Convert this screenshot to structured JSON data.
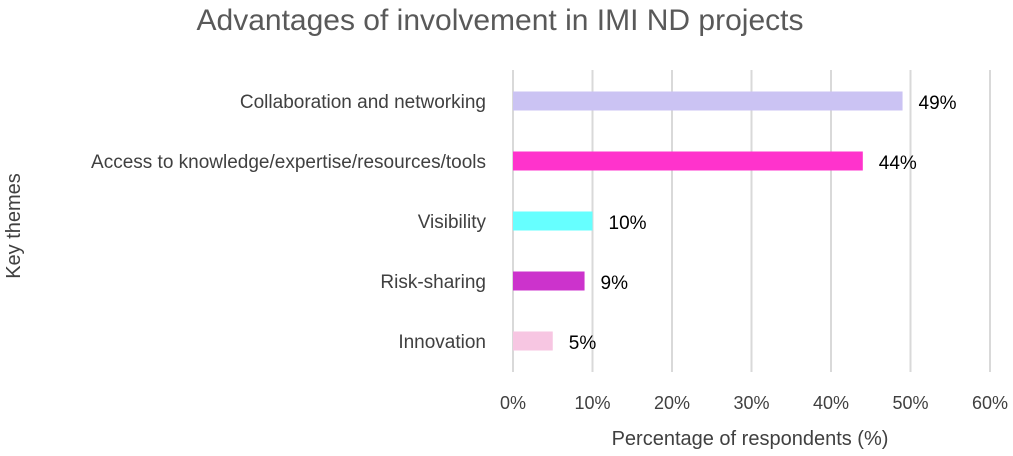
{
  "chart_data": {
    "type": "bar",
    "orientation": "horizontal",
    "title": "Advantages of involvement in IMI ND projects",
    "xlabel": "Percentage of respondents (%)",
    "ylabel": "Key themes",
    "categories": [
      "Collaboration and networking",
      "Access to knowledge/expertise/resources/tools",
      "Visibility",
      "Risk-sharing",
      "Innovation"
    ],
    "values": [
      49,
      44,
      10,
      9,
      5
    ],
    "data_labels": [
      "49%",
      "44%",
      "10%",
      "9%",
      "5%"
    ],
    "bar_colors": [
      "#cbc3f3",
      "#ff33cc",
      "#66ffff",
      "#cc33cc",
      "#f7c6e2"
    ],
    "xlim": [
      0,
      60
    ],
    "xticks": [
      "0%",
      "10%",
      "20%",
      "30%",
      "40%",
      "50%",
      "60%"
    ],
    "grid": true,
    "legend": "none"
  }
}
